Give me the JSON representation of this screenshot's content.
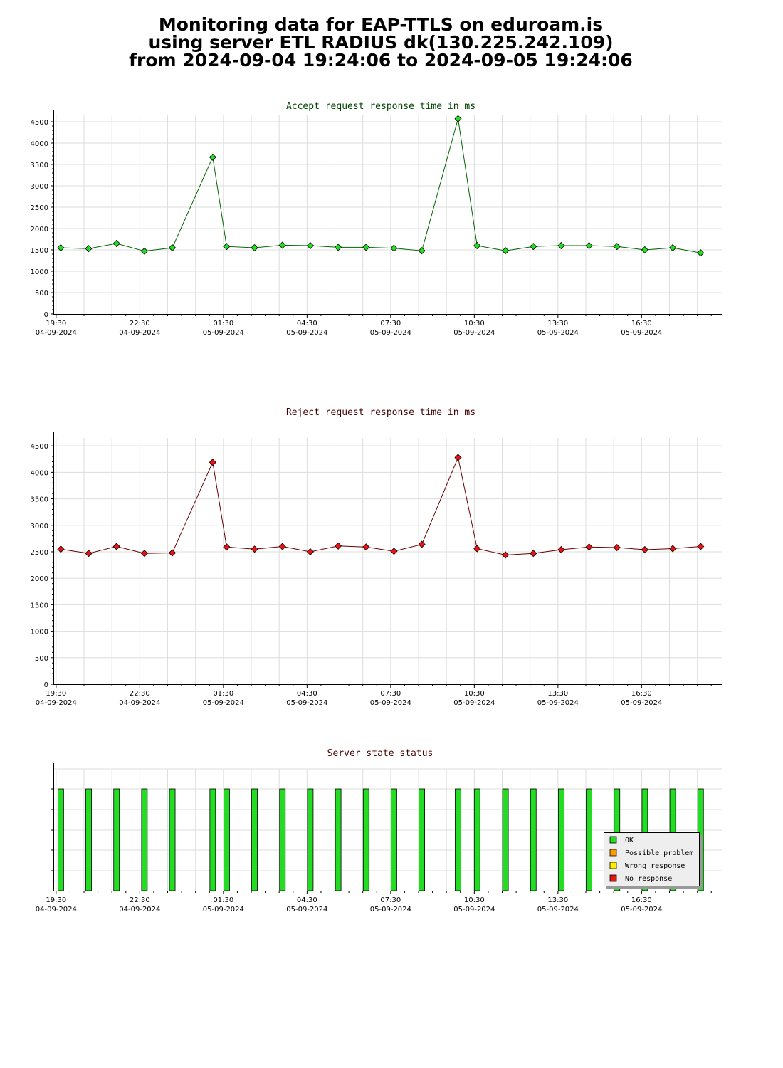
{
  "header": {
    "line1": "Monitoring data for EAP-TTLS on eduroam.is",
    "line2": "using server ETL RADIUS dk(130.225.242.109)",
    "line3": "from 2024-09-04 19:24:06 to 2024-09-05 19:24:06"
  },
  "colors": {
    "accept_point": "#22dd22",
    "accept_line": "#006600",
    "accept_title": "#004400",
    "reject_point": "#ee1111",
    "reject_line": "#660000",
    "reject_title": "#440000",
    "status_bar": "#22dd22",
    "status_title": "#440000",
    "grid": "#dddddd"
  },
  "x_ticks": [
    {
      "time": "19:30",
      "date": "04-09-2024"
    },
    {
      "time": "22:30",
      "date": "04-09-2024"
    },
    {
      "time": "01:30",
      "date": "05-09-2024"
    },
    {
      "time": "04:30",
      "date": "05-09-2024"
    },
    {
      "time": "07:30",
      "date": "05-09-2024"
    },
    {
      "time": "10:30",
      "date": "05-09-2024"
    },
    {
      "time": "13:30",
      "date": "05-09-2024"
    },
    {
      "time": "16:30",
      "date": "05-09-2024"
    }
  ],
  "chart_data": [
    {
      "type": "line",
      "title": "Accept request response time in ms",
      "xlabel": "",
      "ylabel": "",
      "ylim": [
        0,
        4650
      ],
      "yticks": [
        0,
        500,
        1000,
        1500,
        2000,
        2500,
        3000,
        3500,
        4000,
        4500
      ],
      "x": [
        "19:40",
        "20:40",
        "21:40",
        "22:40",
        "23:40",
        "01:07",
        "01:37",
        "02:37",
        "03:37",
        "04:37",
        "05:37",
        "06:37",
        "07:37",
        "08:37",
        "09:55",
        "10:36",
        "11:37",
        "12:37",
        "13:37",
        "14:37",
        "15:37",
        "16:37",
        "17:37",
        "18:37"
      ],
      "values": [
        1550,
        1530,
        1650,
        1470,
        1550,
        3670,
        1580,
        1550,
        1610,
        1600,
        1560,
        1560,
        1540,
        1480,
        4570,
        1600,
        1480,
        1580,
        1600,
        1600,
        1580,
        1500,
        1550,
        1430
      ]
    },
    {
      "type": "line",
      "title": "Reject request response time in ms",
      "xlabel": "",
      "ylabel": "",
      "ylim": [
        0,
        4650
      ],
      "yticks": [
        0,
        500,
        1000,
        1500,
        2000,
        2500,
        3000,
        3500,
        4000,
        4500
      ],
      "x": [
        "19:40",
        "20:40",
        "21:40",
        "22:40",
        "23:40",
        "01:07",
        "01:37",
        "02:37",
        "03:37",
        "04:37",
        "05:37",
        "06:37",
        "07:37",
        "08:37",
        "09:55",
        "10:36",
        "11:37",
        "12:37",
        "13:37",
        "14:37",
        "15:37",
        "16:37",
        "17:37",
        "18:37"
      ],
      "values": [
        2550,
        2470,
        2600,
        2470,
        2480,
        4190,
        2590,
        2550,
        2600,
        2500,
        2610,
        2590,
        2510,
        2640,
        4280,
        2560,
        2440,
        2470,
        2540,
        2590,
        2580,
        2540,
        2560,
        2600
      ]
    },
    {
      "type": "bar",
      "title": "Server state status",
      "xlabel": "",
      "ylabel": "",
      "x": [
        "19:40",
        "20:40",
        "21:40",
        "22:40",
        "23:40",
        "01:07",
        "01:37",
        "02:37",
        "03:37",
        "04:37",
        "05:37",
        "06:37",
        "07:37",
        "08:37",
        "09:55",
        "10:36",
        "11:37",
        "12:37",
        "13:37",
        "14:37",
        "15:37",
        "16:37",
        "17:37",
        "18:37"
      ],
      "values": [
        "OK",
        "OK",
        "OK",
        "OK",
        "OK",
        "OK",
        "OK",
        "OK",
        "OK",
        "OK",
        "OK",
        "OK",
        "OK",
        "OK",
        "OK",
        "OK",
        "OK",
        "OK",
        "OK",
        "OK",
        "OK",
        "OK",
        "OK",
        "OK"
      ],
      "legend": {
        "placement": "bottom-right",
        "items": [
          {
            "label": "OK",
            "color": "#22dd22"
          },
          {
            "label": "Possible problem",
            "color": "#ff9900"
          },
          {
            "label": "Wrong response",
            "color": "#ffee00"
          },
          {
            "label": "No response",
            "color": "#ee1111"
          }
        ]
      }
    }
  ]
}
